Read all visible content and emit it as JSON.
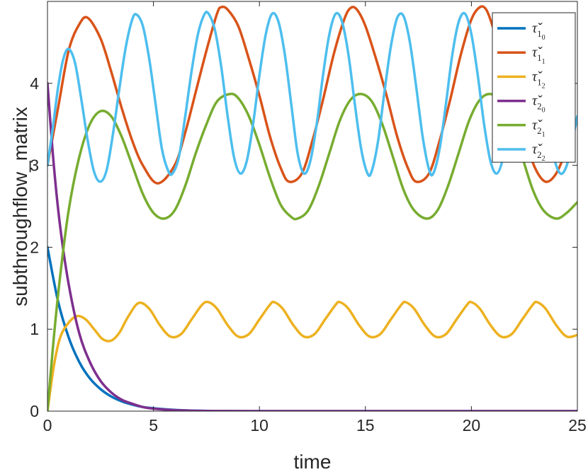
{
  "chart_data": {
    "type": "line",
    "xlabel": "time",
    "ylabel": "subthroughflow_matrix",
    "xlim": [
      0,
      25
    ],
    "ylim": [
      0,
      5
    ],
    "xticks": [
      "0",
      "5",
      "10",
      "15",
      "20",
      "25"
    ],
    "yticks": [
      "0",
      "1",
      "2",
      "3",
      "4"
    ],
    "grid": false,
    "legend_position": "top-right",
    "series": [
      {
        "name": "τ̌_{1_0}",
        "sym": "τ̌",
        "sub": "1",
        "subsub": "0",
        "color": "#0072BD",
        "points": [
          [
            0,
            2.0
          ],
          [
            0.5,
            1.34
          ],
          [
            1,
            0.9
          ],
          [
            1.5,
            0.6
          ],
          [
            2,
            0.4
          ],
          [
            2.5,
            0.27
          ],
          [
            3,
            0.18
          ],
          [
            3.5,
            0.12
          ],
          [
            4,
            0.08
          ],
          [
            4.5,
            0.05
          ],
          [
            5,
            0.035
          ],
          [
            6,
            0.015
          ],
          [
            7,
            0.005
          ],
          [
            8,
            0.001
          ],
          [
            10,
            0
          ],
          [
            15,
            0
          ],
          [
            20,
            0
          ],
          [
            25,
            0
          ]
        ]
      },
      {
        "name": "τ̌_{1_1}",
        "sym": "τ̌",
        "sub": "1",
        "subsub": "1",
        "color": "#D95319",
        "points": [
          [
            0,
            3.0
          ],
          [
            0.5,
            3.7
          ],
          [
            1,
            4.4
          ],
          [
            1.5,
            4.72
          ],
          [
            1.9,
            4.8
          ],
          [
            2.5,
            4.55
          ],
          [
            3,
            4.15
          ],
          [
            3.5,
            3.7
          ],
          [
            4,
            3.3
          ],
          [
            4.5,
            3.0
          ],
          [
            5.2,
            2.78
          ],
          [
            6,
            3.0
          ],
          [
            6.5,
            3.4
          ],
          [
            7,
            3.9
          ],
          [
            7.5,
            4.4
          ],
          [
            8,
            4.85
          ],
          [
            8.2,
            4.93
          ],
          [
            8.5,
            4.9
          ],
          [
            9,
            4.7
          ],
          [
            9.5,
            4.3
          ],
          [
            10,
            3.85
          ],
          [
            10.5,
            3.35
          ],
          [
            11,
            2.97
          ],
          [
            11.4,
            2.8
          ],
          [
            12,
            2.9
          ],
          [
            12.5,
            3.3
          ],
          [
            13,
            3.8
          ],
          [
            13.5,
            4.35
          ],
          [
            14,
            4.78
          ],
          [
            14.3,
            4.92
          ],
          [
            14.6,
            4.9
          ],
          [
            15,
            4.7
          ],
          [
            15.5,
            4.3
          ],
          [
            16,
            3.85
          ],
          [
            16.5,
            3.35
          ],
          [
            17,
            2.97
          ],
          [
            17.4,
            2.8
          ],
          [
            18,
            2.9
          ],
          [
            18.5,
            3.3
          ],
          [
            19,
            3.8
          ],
          [
            19.5,
            4.35
          ],
          [
            20,
            4.78
          ],
          [
            20.4,
            4.93
          ],
          [
            20.7,
            4.9
          ],
          [
            21,
            4.7
          ],
          [
            21.5,
            4.3
          ],
          [
            22,
            3.85
          ],
          [
            22.5,
            3.35
          ],
          [
            23,
            2.97
          ],
          [
            23.5,
            2.8
          ],
          [
            24,
            2.9
          ],
          [
            24.5,
            3.2
          ],
          [
            25,
            3.55
          ]
        ]
      },
      {
        "name": "τ̌_{1_2}",
        "sym": "τ̌",
        "sub": "1",
        "subsub": "2",
        "color": "#EDB120",
        "points": [
          [
            0,
            0
          ],
          [
            0.3,
            0.55
          ],
          [
            0.6,
            0.9
          ],
          [
            1,
            1.08
          ],
          [
            1.4,
            1.16
          ],
          [
            1.8,
            1.12
          ],
          [
            2.2,
            1.0
          ],
          [
            2.6,
            0.88
          ],
          [
            3,
            0.86
          ],
          [
            3.4,
            0.96
          ],
          [
            3.8,
            1.15
          ],
          [
            4.3,
            1.32
          ],
          [
            4.8,
            1.25
          ],
          [
            5.3,
            1.05
          ],
          [
            5.8,
            0.91
          ],
          [
            6.3,
            0.94
          ],
          [
            6.8,
            1.12
          ],
          [
            7.3,
            1.3
          ],
          [
            7.6,
            1.33
          ],
          [
            8,
            1.25
          ],
          [
            8.5,
            1.05
          ],
          [
            9,
            0.91
          ],
          [
            9.5,
            0.94
          ],
          [
            10,
            1.12
          ],
          [
            10.5,
            1.3
          ],
          [
            10.7,
            1.33
          ],
          [
            11.1,
            1.25
          ],
          [
            11.6,
            1.05
          ],
          [
            12.1,
            0.91
          ],
          [
            12.6,
            0.94
          ],
          [
            13.1,
            1.12
          ],
          [
            13.6,
            1.3
          ],
          [
            13.8,
            1.33
          ],
          [
            14.2,
            1.25
          ],
          [
            14.7,
            1.05
          ],
          [
            15.2,
            0.91
          ],
          [
            15.7,
            0.94
          ],
          [
            16.2,
            1.12
          ],
          [
            16.7,
            1.3
          ],
          [
            16.9,
            1.33
          ],
          [
            17.3,
            1.25
          ],
          [
            17.8,
            1.05
          ],
          [
            18.3,
            0.91
          ],
          [
            18.8,
            0.94
          ],
          [
            19.3,
            1.12
          ],
          [
            19.8,
            1.3
          ],
          [
            20,
            1.33
          ],
          [
            20.4,
            1.25
          ],
          [
            20.9,
            1.05
          ],
          [
            21.4,
            0.91
          ],
          [
            21.9,
            0.94
          ],
          [
            22.4,
            1.12
          ],
          [
            22.9,
            1.3
          ],
          [
            23.1,
            1.33
          ],
          [
            23.5,
            1.25
          ],
          [
            24,
            1.05
          ],
          [
            24.5,
            0.91
          ],
          [
            25,
            0.93
          ]
        ]
      },
      {
        "name": "τ̌_{2_0}",
        "sym": "τ̌",
        "sub": "2",
        "subsub": "0",
        "color": "#7E2F8E",
        "points": [
          [
            0,
            4.0
          ],
          [
            0.3,
            3.0
          ],
          [
            0.6,
            2.25
          ],
          [
            1,
            1.55
          ],
          [
            1.5,
            0.95
          ],
          [
            2,
            0.6
          ],
          [
            2.5,
            0.37
          ],
          [
            3,
            0.23
          ],
          [
            3.5,
            0.14
          ],
          [
            4,
            0.09
          ],
          [
            4.5,
            0.05
          ],
          [
            5,
            0.03
          ],
          [
            6,
            0.012
          ],
          [
            7,
            0.004
          ],
          [
            8,
            0.001
          ],
          [
            10,
            0
          ],
          [
            15,
            0
          ],
          [
            20,
            0
          ],
          [
            25,
            0
          ]
        ]
      },
      {
        "name": "τ̌_{2_1}",
        "sym": "τ̌",
        "sub": "2",
        "subsub": "1",
        "color": "#77AC30",
        "points": [
          [
            0,
            0
          ],
          [
            0.3,
            0.9
          ],
          [
            0.6,
            1.65
          ],
          [
            1,
            2.45
          ],
          [
            1.5,
            3.1
          ],
          [
            2,
            3.5
          ],
          [
            2.5,
            3.66
          ],
          [
            3,
            3.6
          ],
          [
            3.5,
            3.35
          ],
          [
            4,
            3.0
          ],
          [
            4.5,
            2.65
          ],
          [
            5,
            2.42
          ],
          [
            5.5,
            2.35
          ],
          [
            6,
            2.45
          ],
          [
            6.5,
            2.75
          ],
          [
            7,
            3.15
          ],
          [
            7.5,
            3.5
          ],
          [
            8,
            3.78
          ],
          [
            8.6,
            3.87
          ],
          [
            9,
            3.82
          ],
          [
            9.5,
            3.6
          ],
          [
            10,
            3.25
          ],
          [
            10.5,
            2.85
          ],
          [
            11,
            2.52
          ],
          [
            11.5,
            2.37
          ],
          [
            11.8,
            2.35
          ],
          [
            12.3,
            2.45
          ],
          [
            12.8,
            2.75
          ],
          [
            13.3,
            3.15
          ],
          [
            13.8,
            3.55
          ],
          [
            14.3,
            3.8
          ],
          [
            14.8,
            3.87
          ],
          [
            15.3,
            3.78
          ],
          [
            15.8,
            3.5
          ],
          [
            16.3,
            3.1
          ],
          [
            16.8,
            2.7
          ],
          [
            17.3,
            2.45
          ],
          [
            17.9,
            2.35
          ],
          [
            18.4,
            2.45
          ],
          [
            18.9,
            2.75
          ],
          [
            19.4,
            3.15
          ],
          [
            19.9,
            3.55
          ],
          [
            20.4,
            3.8
          ],
          [
            20.9,
            3.87
          ],
          [
            21.4,
            3.78
          ],
          [
            21.9,
            3.5
          ],
          [
            22.4,
            3.1
          ],
          [
            22.9,
            2.7
          ],
          [
            23.4,
            2.45
          ],
          [
            24,
            2.35
          ],
          [
            24.5,
            2.42
          ],
          [
            25,
            2.55
          ]
        ]
      },
      {
        "name": "τ̌_{2_2}",
        "sym": "τ̌",
        "sub": "2",
        "subsub": "2",
        "color": "#4DBEEE",
        "points": [
          [
            0,
            3.0
          ],
          [
            0.25,
            3.45
          ],
          [
            0.5,
            3.95
          ],
          [
            0.75,
            4.3
          ],
          [
            1.0,
            4.42
          ],
          [
            1.3,
            4.25
          ],
          [
            1.6,
            3.8
          ],
          [
            1.9,
            3.3
          ],
          [
            2.2,
            2.92
          ],
          [
            2.5,
            2.8
          ],
          [
            2.8,
            2.95
          ],
          [
            3.1,
            3.4
          ],
          [
            3.4,
            3.95
          ],
          [
            3.7,
            4.45
          ],
          [
            4.0,
            4.78
          ],
          [
            4.2,
            4.84
          ],
          [
            4.5,
            4.7
          ],
          [
            4.8,
            4.3
          ],
          [
            5.1,
            3.75
          ],
          [
            5.4,
            3.2
          ],
          [
            5.7,
            2.93
          ],
          [
            5.9,
            2.9
          ],
          [
            6.2,
            3.1
          ],
          [
            6.5,
            3.6
          ],
          [
            6.8,
            4.15
          ],
          [
            7.1,
            4.6
          ],
          [
            7.4,
            4.84
          ],
          [
            7.6,
            4.85
          ],
          [
            7.9,
            4.65
          ],
          [
            8.2,
            4.2
          ],
          [
            8.5,
            3.6
          ],
          [
            8.8,
            3.1
          ],
          [
            9.1,
            2.9
          ],
          [
            9.4,
            3.05
          ],
          [
            9.7,
            3.5
          ],
          [
            10.0,
            4.1
          ],
          [
            10.3,
            4.6
          ],
          [
            10.6,
            4.85
          ],
          [
            10.9,
            4.75
          ],
          [
            11.2,
            4.35
          ],
          [
            11.5,
            3.75
          ],
          [
            11.8,
            3.15
          ],
          [
            12.1,
            2.9
          ],
          [
            12.4,
            3.05
          ],
          [
            12.7,
            3.5
          ],
          [
            13.0,
            4.1
          ],
          [
            13.3,
            4.6
          ],
          [
            13.6,
            4.85
          ],
          [
            13.9,
            4.75
          ],
          [
            14.2,
            4.35
          ],
          [
            14.5,
            3.75
          ],
          [
            14.8,
            3.2
          ],
          [
            15.1,
            2.9
          ],
          [
            15.3,
            2.93
          ],
          [
            15.6,
            3.3
          ],
          [
            15.9,
            3.9
          ],
          [
            16.2,
            4.45
          ],
          [
            16.5,
            4.8
          ],
          [
            16.8,
            4.82
          ],
          [
            17.1,
            4.5
          ],
          [
            17.4,
            3.95
          ],
          [
            17.7,
            3.35
          ],
          [
            18.0,
            2.95
          ],
          [
            18.2,
            2.9
          ],
          [
            18.5,
            3.2
          ],
          [
            18.8,
            3.75
          ],
          [
            19.1,
            4.35
          ],
          [
            19.4,
            4.75
          ],
          [
            19.7,
            4.85
          ],
          [
            20.0,
            4.6
          ],
          [
            20.3,
            4.1
          ],
          [
            20.6,
            3.5
          ],
          [
            20.9,
            3.05
          ],
          [
            21.2,
            2.9
          ],
          [
            21.5,
            3.1
          ],
          [
            21.8,
            3.6
          ],
          [
            22.1,
            4.2
          ],
          [
            22.4,
            4.65
          ],
          [
            22.7,
            4.85
          ],
          [
            23.0,
            4.7
          ],
          [
            23.3,
            4.2
          ],
          [
            23.6,
            3.6
          ],
          [
            23.9,
            3.1
          ],
          [
            24.2,
            2.9
          ],
          [
            24.5,
            3.0
          ],
          [
            24.8,
            3.35
          ],
          [
            25,
            3.6
          ]
        ]
      }
    ]
  }
}
